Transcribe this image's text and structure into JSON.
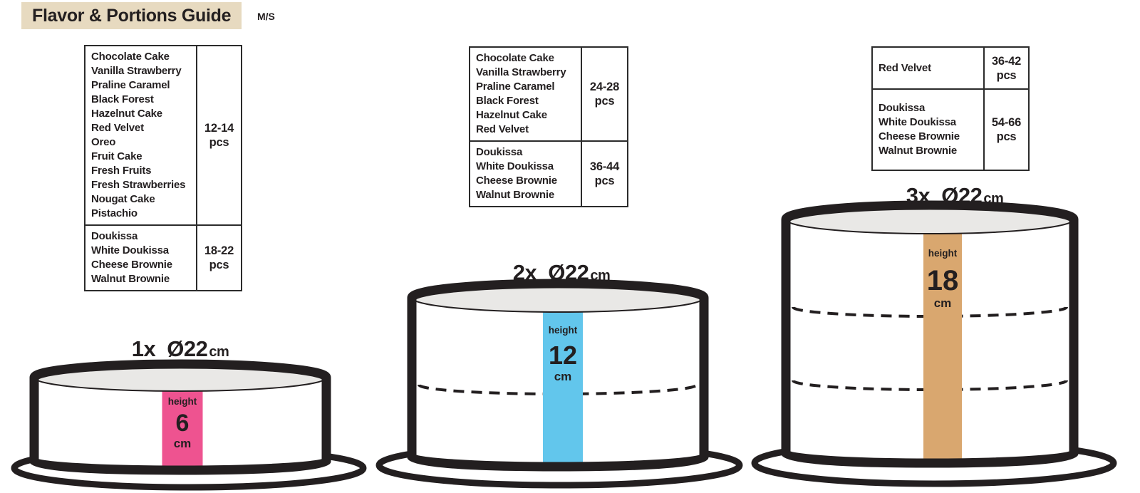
{
  "header": {
    "title": "Flavor & Portions Guide",
    "brand": "M/S"
  },
  "colors": {
    "title_bg": "#e7dac0",
    "ink": "#231f20",
    "cake_top": "#e9e8e6",
    "pink": "#ee5390",
    "blue": "#62c6ec",
    "tan": "#d9a76f"
  },
  "tables": [
    {
      "rows": [
        {
          "flavors": [
            "Chocolate Cake",
            "Vanilla Strawberry",
            "Praline Caramel",
            "Black Forest",
            "Hazelnut Cake",
            "Red Velvet",
            "Oreo",
            "Fruit Cake",
            "Fresh Fruits",
            "Fresh Strawberries",
            "Nougat Cake",
            "Pistachio"
          ],
          "count": "12-14",
          "unit": "pcs"
        },
        {
          "flavors": [
            "Doukissa",
            "White Doukissa",
            "Cheese Brownie",
            "Walnut Brownie"
          ],
          "count": "18-22",
          "unit": "pcs"
        }
      ]
    },
    {
      "rows": [
        {
          "flavors": [
            "Chocolate Cake",
            "Vanilla Strawberry",
            "Praline Caramel",
            "Black Forest",
            "Hazelnut Cake",
            "Red Velvet"
          ],
          "count": "24-28",
          "unit": "pcs"
        },
        {
          "flavors": [
            "Doukissa",
            "White Doukissa",
            "Cheese Brownie",
            "Walnut Brownie"
          ],
          "count": "36-44",
          "unit": "pcs"
        }
      ]
    },
    {
      "rows": [
        {
          "flavors": [
            "Red Velvet"
          ],
          "count": "36-42",
          "unit": "pcs"
        },
        {
          "flavors": [
            "Doukissa",
            "White Doukissa",
            "Cheese Brownie",
            "Walnut Brownie"
          ],
          "count": "54-66",
          "unit": "pcs"
        }
      ]
    }
  ],
  "cakes": [
    {
      "multiplier": "1x",
      "diameter": "Ø22",
      "diameter_unit": "cm",
      "height_caption": "height",
      "height_value": "6",
      "height_unit": "cm",
      "bar_color": "#ee5390",
      "layers": 1
    },
    {
      "multiplier": "2x",
      "diameter": "Ø22",
      "diameter_unit": "cm",
      "height_caption": "height",
      "height_value": "12",
      "height_unit": "cm",
      "bar_color": "#62c6ec",
      "layers": 2
    },
    {
      "multiplier": "3x",
      "diameter": "Ø22",
      "diameter_unit": "cm",
      "height_caption": "height",
      "height_value": "18",
      "height_unit": "cm",
      "bar_color": "#d9a76f",
      "layers": 3
    }
  ]
}
